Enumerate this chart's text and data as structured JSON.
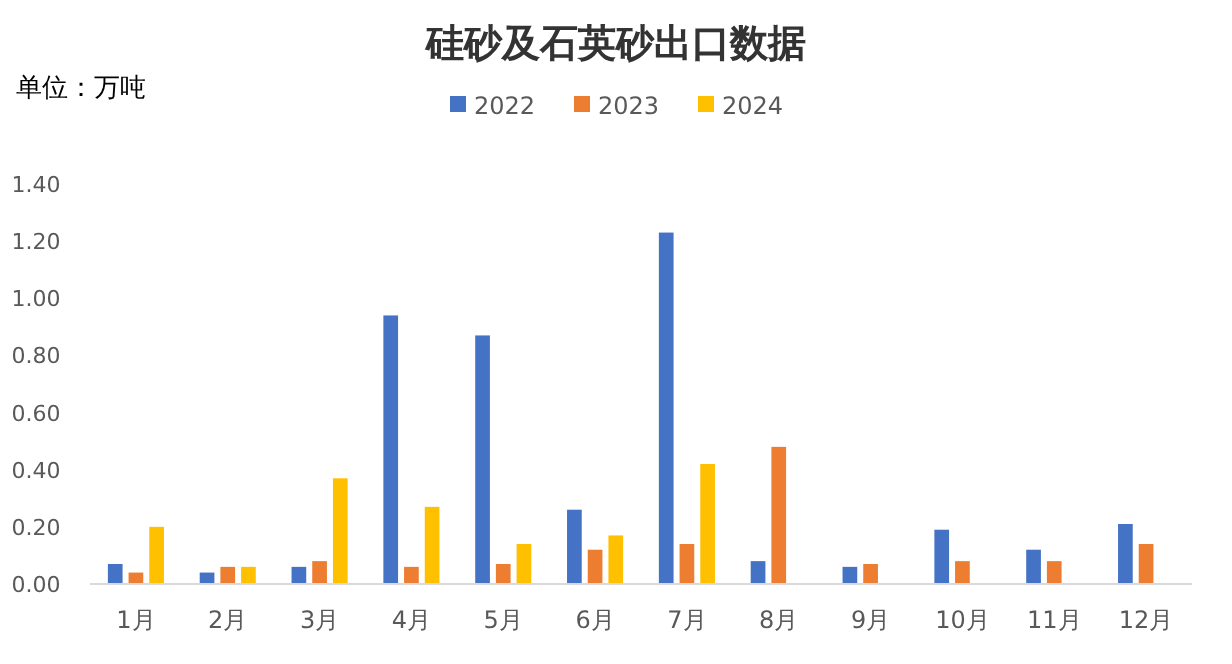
{
  "chart_data": {
    "type": "bar",
    "title": "硅砂及石英砂出口数据",
    "annotations": [
      "单位：万吨"
    ],
    "categories": [
      "1月",
      "2月",
      "3月",
      "4月",
      "5月",
      "6月",
      "7月",
      "8月",
      "9月",
      "10月",
      "11月",
      "12月"
    ],
    "series": [
      {
        "name": "2022",
        "color": "#4472c4",
        "values": [
          0.07,
          0.04,
          0.06,
          0.94,
          0.87,
          0.26,
          1.23,
          0.08,
          0.06,
          0.19,
          0.12,
          0.21
        ]
      },
      {
        "name": "2023",
        "color": "#ed7d31",
        "values": [
          0.04,
          0.06,
          0.08,
          0.06,
          0.07,
          0.12,
          0.14,
          0.48,
          0.07,
          0.08,
          0.08,
          0.14
        ]
      },
      {
        "name": "2024",
        "color": "#ffc000",
        "values": [
          0.2,
          0.06,
          0.37,
          0.27,
          0.14,
          0.17,
          0.42,
          null,
          null,
          null,
          null,
          null
        ]
      }
    ],
    "ylim": [
      0,
      1.4
    ],
    "yticks": [
      {
        "value": 0,
        "label": "0.00"
      },
      {
        "value": 0.2,
        "label": "0.20"
      },
      {
        "value": 0.4,
        "label": "0.40"
      },
      {
        "value": 0.6,
        "label": "0.60"
      },
      {
        "value": 0.8,
        "label": "0.80"
      },
      {
        "value": 1.0,
        "label": "1.00"
      },
      {
        "value": 1.2,
        "label": "1.20"
      },
      {
        "value": 1.4,
        "label": "1.40"
      }
    ],
    "legend": "top"
  }
}
